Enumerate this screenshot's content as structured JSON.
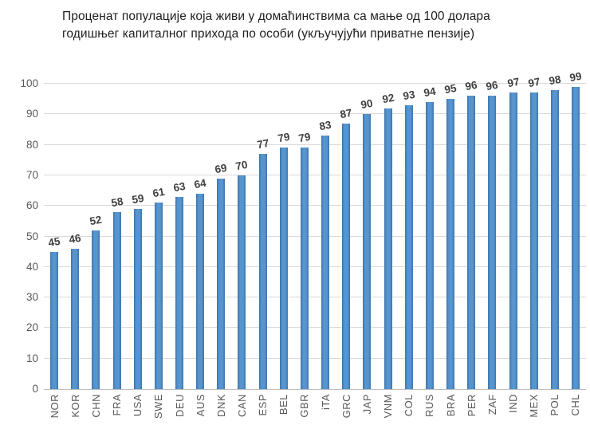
{
  "title": {
    "lines": [
      "Проценат популације која живи у домаћинствима са мање од 100 долара",
      "годишњег капиталног прихода по особи (укључујући приватне пензије)"
    ]
  },
  "chart_data": {
    "type": "bar",
    "title": "Проценат популације која живи у домаћинствима са мање од 100 долара годишњег капиталног прихода по особи (укључујући приватне пензије)",
    "categories": [
      "NOR",
      "KOR",
      "CHN",
      "FRA",
      "USA",
      "SWE",
      "DEU",
      "AUS",
      "DNK",
      "CAN",
      "ESP",
      "BEL",
      "GBR",
      "iTA",
      "GRC",
      "JAP",
      "VNM",
      "COL",
      "RUS",
      "BRA",
      "PER",
      "ZAF",
      "IND",
      "MEX",
      "POL",
      "CHL"
    ],
    "values": [
      45,
      46,
      52,
      58,
      59,
      61,
      63,
      64,
      69,
      70,
      77,
      79,
      79,
      83,
      87,
      90,
      92,
      93,
      94,
      95,
      96,
      96,
      97,
      97,
      98,
      99
    ],
    "xlabel": "",
    "ylabel": "",
    "ylim": [
      0,
      100
    ],
    "yticks": [
      0,
      10,
      20,
      30,
      40,
      50,
      60,
      70,
      80,
      90,
      100
    ],
    "grid": true,
    "legend": "none",
    "value_labels_shown": true,
    "bar_color": "#5795D0",
    "bar_edge_color": "#3D74A8",
    "gridline_color": "#D9D9D9",
    "axis_line_color": "#BFBFBF",
    "tick_text_color": "#595959",
    "value_text_color": "#3F3F3F",
    "title_text_color": "#1F1F1F"
  }
}
